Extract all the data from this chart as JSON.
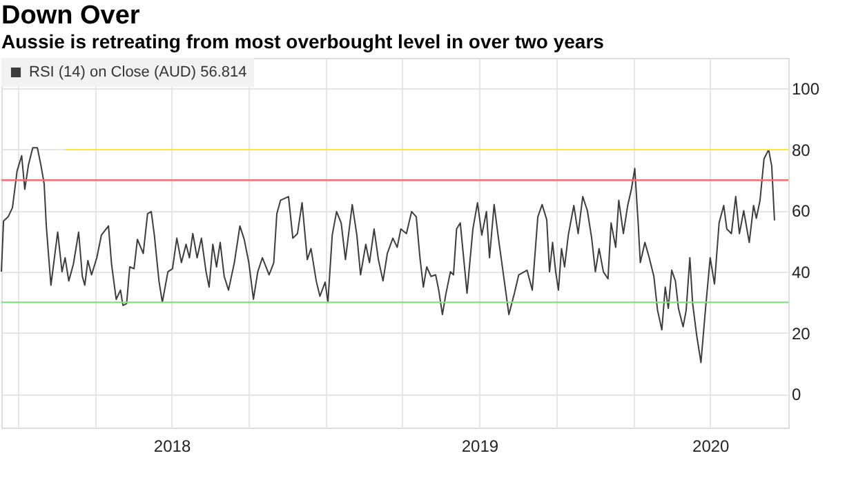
{
  "chart_data": {
    "type": "line",
    "title": "Down Over",
    "subtitle": "Aussie is retreating from most overbought level in over two years",
    "series": [
      {
        "name": "RSI (14) on Close (AUD) 56.814",
        "color": "#3c3c3c",
        "x": [
          2017.947,
          2017.954,
          2017.969,
          2017.983,
          2017.998,
          2018.013,
          2018.023,
          2018.035,
          2018.049,
          2018.064,
          2018.076,
          2018.086,
          2018.093,
          2018.101,
          2018.108,
          2018.13,
          2018.144,
          2018.154,
          2018.166,
          2018.181,
          2018.198,
          2018.21,
          2018.218,
          2018.228,
          2018.24,
          2018.257,
          2018.272,
          2018.295,
          2018.305,
          2018.32,
          2018.334,
          2018.342,
          2018.354,
          2018.364,
          2018.378,
          2018.389,
          2018.408,
          2018.422,
          2018.434,
          2018.444,
          2018.459,
          2018.47,
          2018.488,
          2018.503,
          2018.517,
          2018.532,
          2018.547,
          2018.558,
          2018.569,
          2018.583,
          2018.597,
          2018.612,
          2018.622,
          2018.634,
          2018.646,
          2018.658,
          2018.671,
          2018.685,
          2018.704,
          2018.722,
          2018.736,
          2018.751,
          2018.766,
          2018.78,
          2018.795,
          2018.817,
          2018.832,
          2018.842,
          2018.854,
          2018.88,
          2018.894,
          2018.909,
          2018.924,
          2018.941,
          2018.953,
          2018.97,
          2018.982,
          2018.999,
          2019.008,
          2019.022,
          2019.036,
          2019.051,
          2019.065,
          2019.087,
          2019.102,
          2019.114,
          2019.131,
          2019.143,
          2019.158,
          2019.172,
          2019.187,
          2019.201,
          2019.219,
          2019.233,
          2019.245,
          2019.263,
          2019.28,
          2019.295,
          2019.307,
          2019.318,
          2019.329,
          2019.343,
          2019.358,
          2019.368,
          2019.38,
          2019.391,
          2019.406,
          2019.416,
          2019.426,
          2019.438,
          2019.46,
          2019.479,
          2019.494,
          2019.508,
          2019.523,
          2019.533,
          2019.548,
          2019.562,
          2019.577,
          2019.596,
          2019.614,
          2019.628,
          2019.655,
          2019.672,
          2019.69,
          2019.704,
          2019.719,
          2019.728,
          2019.738,
          2019.748,
          2019.757,
          2019.767,
          2019.777,
          2019.789,
          2019.807,
          2019.821,
          2019.836,
          2019.851,
          2019.865,
          2019.877,
          2019.889,
          2019.903,
          2019.918,
          2019.928,
          2019.943,
          2019.953,
          2019.968,
          2019.982,
          2019.994,
          2020.005,
          2020.016,
          2020.023,
          2020.038,
          2020.052,
          2020.067,
          2020.079,
          2020.093,
          2020.104,
          2020.114,
          2020.125,
          2020.137,
          2020.147,
          2020.162,
          2020.172,
          2020.184,
          2020.193,
          2020.206,
          2020.22,
          2020.235,
          2020.25,
          2020.264,
          2020.279,
          2020.294,
          2020.304,
          2020.319,
          2020.333,
          2020.345,
          2020.359,
          2020.377,
          2020.391,
          2020.4,
          2020.412,
          2020.425,
          2020.44,
          2020.45,
          2020.459
        ],
        "values": [
          40,
          56.6,
          58,
          61,
          73,
          78,
          67,
          75,
          80.6,
          80.6,
          74.6,
          68.8,
          55,
          44.5,
          35.6,
          53,
          40,
          44.6,
          37,
          42.5,
          53,
          38.5,
          35.6,
          43.7,
          39,
          44.6,
          52,
          55,
          42.5,
          31,
          34,
          29,
          29.6,
          41.6,
          41,
          50.6,
          46,
          59,
          59.7,
          52,
          37,
          30,
          40,
          41,
          51,
          43,
          49,
          44.6,
          52.5,
          44.6,
          51,
          40,
          35,
          49,
          41.6,
          49.6,
          38.5,
          34,
          43,
          55,
          50.6,
          43,
          31,
          40,
          44.6,
          39,
          43,
          59,
          63.4,
          64.6,
          51,
          52.5,
          62.6,
          44,
          47.6,
          37,
          32,
          36.6,
          30,
          52,
          59.7,
          56,
          44,
          62,
          52,
          39,
          49,
          43,
          54,
          44,
          37,
          46,
          51,
          48,
          54,
          52.5,
          59.7,
          58,
          44.6,
          35,
          41.6,
          38.5,
          39,
          34,
          26,
          32.6,
          40,
          39,
          54,
          56,
          33,
          54,
          62.6,
          52,
          59.7,
          44.6,
          62,
          51,
          40,
          26,
          33,
          39,
          40.5,
          34,
          58,
          62,
          57,
          40,
          49.6,
          40,
          34,
          47.6,
          41.6,
          52,
          61.7,
          52.5,
          64.6,
          60,
          51,
          40,
          47.6,
          40,
          37.7,
          56,
          48,
          63.4,
          52.5,
          61.7,
          67,
          73.8,
          56,
          43,
          49.6,
          44.6,
          38.5,
          27.4,
          21,
          35,
          28,
          40.5,
          37,
          28,
          22,
          27.4,
          44.6,
          29.6,
          19.3,
          10.3,
          28,
          44.6,
          36,
          56,
          61.7,
          54,
          52.5,
          64.6,
          52.5,
          60,
          49.6,
          61.7,
          57.5,
          63.4,
          77,
          80,
          74.6,
          56.814
        ]
      },
      {
        "color": "#f2ea3c",
        "x": [
          2018.154,
          2020.504
        ],
        "values": [
          80,
          80
        ]
      }
    ],
    "xlim": [
      2017.947,
      2020.504
    ],
    "xticks": [
      {
        "value": 2018,
        "label": null
      },
      {
        "value": 2018.25,
        "label": null
      },
      {
        "value": 2018.5,
        "label": "2018"
      },
      {
        "value": 2018.75,
        "label": null
      },
      {
        "value": 2019,
        "label": null
      },
      {
        "value": 2019.25,
        "label": null
      },
      {
        "value": 2019.5,
        "label": "2019"
      },
      {
        "value": 2019.75,
        "label": null
      },
      {
        "value": 2020,
        "label": null
      },
      {
        "value": 2020.25,
        "label": "2020"
      }
    ],
    "ylim": [
      -11,
      110
    ],
    "yticks": [
      0,
      20,
      40,
      60,
      80,
      100
    ],
    "ref_lines": [
      {
        "axis": "y",
        "value": 70,
        "color": "#f07070"
      },
      {
        "axis": "y",
        "value": 30,
        "color": "#80e080"
      }
    ],
    "grid": true,
    "legend": "top left"
  }
}
